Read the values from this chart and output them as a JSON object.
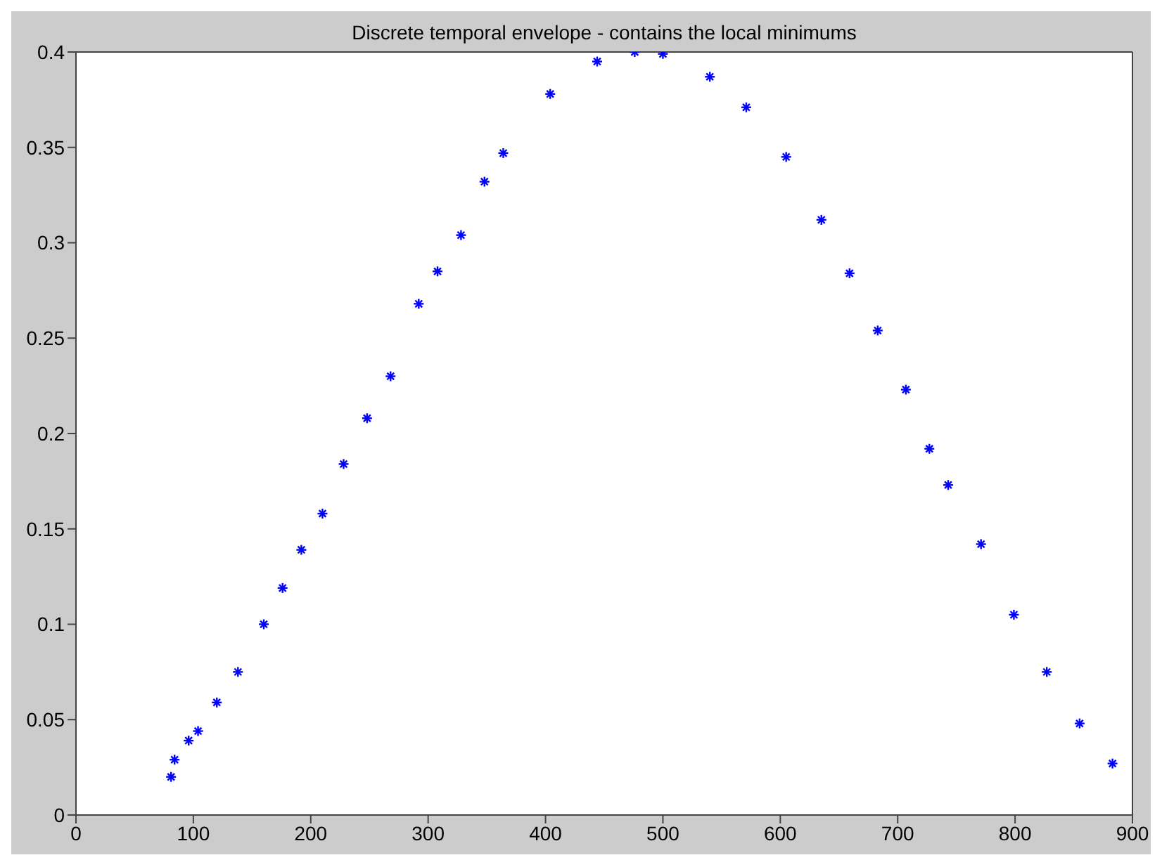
{
  "chart_data": {
    "type": "scatter",
    "title": "Discrete temporal envelope - contains the local minimums",
    "x": [
      81,
      84,
      96,
      104,
      120,
      138,
      160,
      176,
      192,
      210,
      228,
      248,
      268,
      292,
      308,
      328,
      348,
      364,
      404,
      444,
      476,
      500,
      540,
      571,
      605,
      635,
      659,
      683,
      707,
      727,
      743,
      771,
      799,
      827,
      855,
      883
    ],
    "series": [
      {
        "color": "#0000ff",
        "values": [
          0.02,
          0.029,
          0.039,
          0.044,
          0.059,
          0.075,
          0.1,
          0.119,
          0.139,
          0.158,
          0.184,
          0.208,
          0.23,
          0.268,
          0.285,
          0.304,
          0.332,
          0.347,
          0.378,
          0.395,
          0.4,
          0.399,
          0.387,
          0.371,
          0.345,
          0.312,
          0.284,
          0.254,
          0.223,
          0.192,
          0.173,
          0.142,
          0.105,
          0.075,
          0.048,
          0.027
        ]
      }
    ],
    "xlim": [
      0,
      900
    ],
    "xticks": [
      0,
      100,
      200,
      300,
      400,
      500,
      600,
      700,
      800,
      900
    ],
    "ylim": [
      0,
      0.4
    ],
    "yticks": [
      0,
      0.05,
      0.1,
      0.15,
      0.2,
      0.25,
      0.3,
      0.35,
      0.4
    ],
    "marker": "cross",
    "legend": false
  }
}
